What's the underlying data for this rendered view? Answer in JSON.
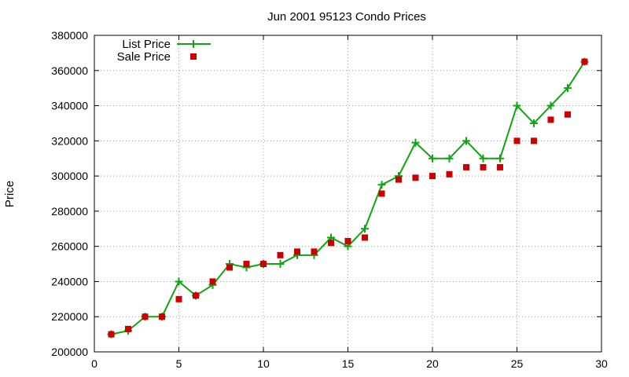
{
  "chart_data": {
    "type": "line",
    "title": "Jun 2001 95123 Condo Prices",
    "xlabel": "",
    "ylabel": "Price",
    "xlim": [
      0,
      30
    ],
    "ylim": [
      200000,
      380000
    ],
    "x_ticks": [
      0,
      5,
      10,
      15,
      20,
      25,
      30
    ],
    "y_ticks": [
      200000,
      220000,
      240000,
      260000,
      280000,
      300000,
      320000,
      340000,
      360000,
      380000
    ],
    "grid": true,
    "legend_position": "top-left",
    "series": [
      {
        "name": "List Price",
        "style": "line-with-plus-markers",
        "color": "#11a511",
        "x": [
          1,
          2,
          3,
          4,
          5,
          6,
          7,
          8,
          9,
          10,
          11,
          12,
          13,
          14,
          15,
          16,
          17,
          18,
          19,
          20,
          21,
          22,
          23,
          24,
          25,
          26,
          27,
          28,
          29
        ],
        "y": [
          210000,
          212000,
          220000,
          220000,
          240000,
          232000,
          238000,
          250000,
          248000,
          250000,
          250000,
          255000,
          255000,
          265000,
          260000,
          270000,
          295000,
          300000,
          319000,
          310000,
          310000,
          320000,
          310000,
          310000,
          340000,
          330000,
          340000,
          350000,
          365000
        ]
      },
      {
        "name": "Sale Price",
        "style": "square-markers",
        "color": "#cc0000",
        "x": [
          1,
          2,
          3,
          4,
          5,
          6,
          7,
          8,
          9,
          10,
          11,
          12,
          13,
          14,
          15,
          16,
          17,
          18,
          19,
          20,
          21,
          22,
          23,
          24,
          25,
          26,
          27,
          28,
          29
        ],
        "y": [
          210000,
          213000,
          220000,
          220000,
          230000,
          232000,
          240000,
          248000,
          250000,
          250000,
          255000,
          257000,
          257000,
          262000,
          263000,
          265000,
          290000,
          298000,
          299000,
          300000,
          301000,
          305000,
          305000,
          305000,
          320000,
          320000,
          332000,
          335000,
          365000
        ]
      }
    ]
  }
}
